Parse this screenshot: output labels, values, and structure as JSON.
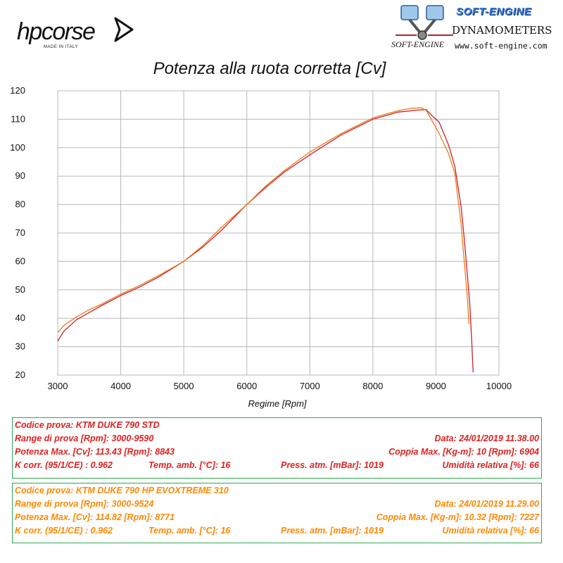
{
  "header": {
    "left_logo": {
      "name": "hpcorse",
      "tagline": "MADE IN ITALY"
    },
    "right_logo": {
      "brand": "SOFT-ENGINE",
      "product": "DYNAMOMETERS",
      "small": "SOFT-ENGINE",
      "url": "www.soft-engine.com"
    }
  },
  "colors": {
    "series1": "#cc1f2e",
    "series2": "#f07a18",
    "box_border": "#2fa94e",
    "box1_text": "#e02020",
    "box2_text": "#ff8800"
  },
  "chart_data": {
    "type": "line",
    "title": "Potenza alla ruota corretta [Cv]",
    "xlabel": "Regime [Rpm]",
    "ylabel": "",
    "xlim": [
      3000,
      10000
    ],
    "ylim": [
      20,
      120
    ],
    "xticks": [
      3000,
      4000,
      5000,
      6000,
      7000,
      8000,
      9000,
      10000
    ],
    "yticks": [
      20,
      30,
      40,
      50,
      60,
      70,
      80,
      90,
      100,
      110,
      120
    ],
    "grid": true,
    "series": [
      {
        "color": "#cc1f2e",
        "x": [
          3000,
          3100,
          3300,
          3500,
          3700,
          4000,
          4300,
          4600,
          5000,
          5300,
          5600,
          6000,
          6300,
          6600,
          7000,
          7500,
          8000,
          8400,
          8700,
          8843,
          8950,
          9050,
          9200,
          9300,
          9400,
          9450,
          9500,
          9540,
          9570,
          9590
        ],
        "y": [
          32,
          35.5,
          39.5,
          42,
          44.5,
          48,
          51,
          54.5,
          60,
          65,
          71,
          80,
          86,
          91.5,
          97.5,
          104.5,
          110,
          112.5,
          113.2,
          113.4,
          111,
          109,
          101,
          93.5,
          79,
          68,
          55,
          44,
          31,
          21
        ]
      },
      {
        "color": "#f07a18",
        "x": [
          3000,
          3100,
          3300,
          3500,
          3700,
          4000,
          4300,
          4600,
          5000,
          5300,
          5600,
          6000,
          6300,
          6600,
          7000,
          7500,
          8000,
          8400,
          8600,
          8771,
          8850,
          8950,
          9050,
          9200,
          9300,
          9400,
          9450,
          9500,
          9524
        ],
        "y": [
          35,
          37.5,
          40.5,
          43,
          45,
          48.5,
          51.5,
          55,
          60,
          65.5,
          72,
          80,
          86.5,
          92,
          98.5,
          105,
          110.5,
          113,
          113.8,
          114.0,
          113,
          109,
          105,
          98,
          91,
          73,
          60,
          47,
          38
        ]
      }
    ]
  },
  "box1": {
    "codice": "Codice prova: KTM DUKE 790  STD",
    "range": "Range di prova [Rpm]: 3000-9590",
    "data": "Data: 24/01/2019  11.38.00",
    "potenza": "Potenza Max. [Cv]: 113.43  [Rpm]: 8843",
    "coppia": "Coppia Max. [Kg-m]: 10  [Rpm]: 6904",
    "kcorr": "K corr. (95/1/CE) : 0.962",
    "temp": "Temp. amb. [°C]: 16",
    "press": "Press. atm. [mBar]: 1019",
    "umid": "Umidità relativa [%]: 66"
  },
  "box2": {
    "codice": "Codice prova: KTM DUKE 790 HP  EVOXTREME 310",
    "range": "Range di prova [Rpm]: 3000-9524",
    "data": "Data: 24/01/2019  11.29.00",
    "potenza": "Potenza Max. [Cv]: 114.82  [Rpm]: 8771",
    "coppia": "Coppia Max. [Kg-m]: 10.32  [Rpm]: 7227",
    "kcorr": "K corr. (95/1/CE) : 0.962",
    "temp": "Temp. amb. [°C]: 16",
    "press": "Press. atm. [mBar]: 1019",
    "umid": "Umidità relativa [%]: 66"
  }
}
